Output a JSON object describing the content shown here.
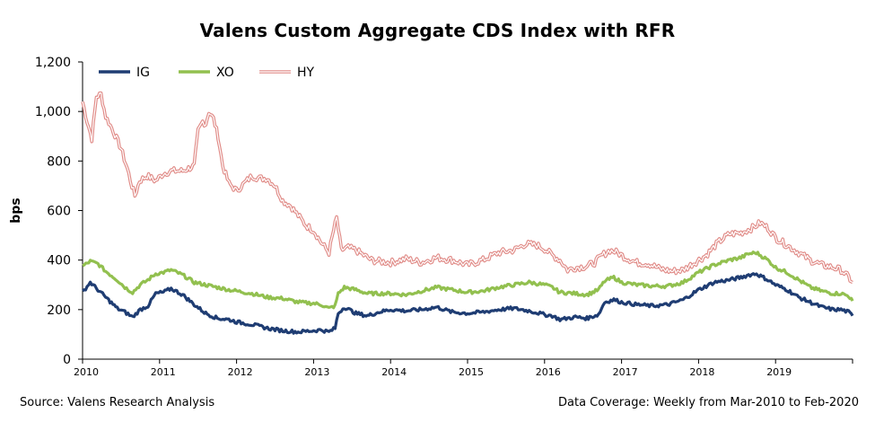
{
  "chart_data": {
    "type": "line",
    "title": "Valens Custom Aggregate CDS Index with RFR",
    "ylabel": "bps",
    "xlabel": "",
    "ylim": [
      0,
      1200
    ],
    "xlim": [
      2010.0,
      2020.0
    ],
    "y_ticks": [
      "0",
      "200",
      "400",
      "600",
      "800",
      "1,000",
      "1,200"
    ],
    "x_ticks": [
      "2010",
      "2011",
      "2012",
      "2013",
      "2014",
      "2015",
      "2016",
      "2017",
      "2018",
      "2019"
    ],
    "legend_position": "top-left",
    "grid": false,
    "series": [
      {
        "name": "IG",
        "color": "#1f3d73",
        "style": "solid",
        "points": [
          [
            2010.0,
            270
          ],
          [
            2010.1,
            310
          ],
          [
            2010.2,
            280
          ],
          [
            2010.3,
            250
          ],
          [
            2010.45,
            205
          ],
          [
            2010.55,
            190
          ],
          [
            2010.65,
            170
          ],
          [
            2010.75,
            200
          ],
          [
            2010.85,
            215
          ],
          [
            2010.95,
            265
          ],
          [
            2011.05,
            270
          ],
          [
            2011.15,
            285
          ],
          [
            2011.3,
            260
          ],
          [
            2011.45,
            220
          ],
          [
            2011.6,
            185
          ],
          [
            2011.75,
            165
          ],
          [
            2011.9,
            160
          ],
          [
            2012.0,
            150
          ],
          [
            2012.2,
            140
          ],
          [
            2012.4,
            125
          ],
          [
            2012.6,
            115
          ],
          [
            2012.8,
            110
          ],
          [
            2013.0,
            115
          ],
          [
            2013.1,
            118
          ],
          [
            2013.2,
            110
          ],
          [
            2013.28,
            125
          ],
          [
            2013.32,
            185
          ],
          [
            2013.4,
            210
          ],
          [
            2013.55,
            185
          ],
          [
            2013.7,
            175
          ],
          [
            2013.85,
            190
          ],
          [
            2014.0,
            200
          ],
          [
            2014.2,
            195
          ],
          [
            2014.4,
            200
          ],
          [
            2014.6,
            210
          ],
          [
            2014.8,
            190
          ],
          [
            2015.0,
            185
          ],
          [
            2015.2,
            190
          ],
          [
            2015.4,
            200
          ],
          [
            2015.6,
            205
          ],
          [
            2015.8,
            195
          ],
          [
            2016.0,
            180
          ],
          [
            2016.1,
            175
          ],
          [
            2016.2,
            160
          ],
          [
            2016.4,
            170
          ],
          [
            2016.55,
            165
          ],
          [
            2016.7,
            180
          ],
          [
            2016.78,
            230
          ],
          [
            2016.9,
            240
          ],
          [
            2017.0,
            230
          ],
          [
            2017.2,
            220
          ],
          [
            2017.4,
            215
          ],
          [
            2017.6,
            220
          ],
          [
            2017.8,
            240
          ],
          [
            2018.0,
            280
          ],
          [
            2018.2,
            310
          ],
          [
            2018.4,
            320
          ],
          [
            2018.55,
            330
          ],
          [
            2018.65,
            340
          ],
          [
            2018.75,
            345
          ],
          [
            2018.9,
            320
          ],
          [
            2019.0,
            300
          ],
          [
            2019.15,
            280
          ],
          [
            2019.3,
            250
          ],
          [
            2019.45,
            230
          ],
          [
            2019.6,
            210
          ],
          [
            2019.75,
            200
          ],
          [
            2019.85,
            200
          ],
          [
            2019.95,
            190
          ],
          [
            2020.0,
            175
          ]
        ]
      },
      {
        "name": "XO",
        "color": "#92c04f",
        "style": "solid",
        "points": [
          [
            2010.0,
            375
          ],
          [
            2010.1,
            395
          ],
          [
            2010.2,
            385
          ],
          [
            2010.3,
            355
          ],
          [
            2010.45,
            320
          ],
          [
            2010.55,
            290
          ],
          [
            2010.65,
            270
          ],
          [
            2010.75,
            300
          ],
          [
            2010.85,
            320
          ],
          [
            2010.95,
            345
          ],
          [
            2011.05,
            350
          ],
          [
            2011.15,
            360
          ],
          [
            2011.3,
            340
          ],
          [
            2011.45,
            310
          ],
          [
            2011.6,
            300
          ],
          [
            2011.75,
            290
          ],
          [
            2011.9,
            280
          ],
          [
            2012.0,
            275
          ],
          [
            2012.2,
            265
          ],
          [
            2012.4,
            250
          ],
          [
            2012.6,
            245
          ],
          [
            2012.8,
            230
          ],
          [
            2013.0,
            225
          ],
          [
            2013.1,
            220
          ],
          [
            2013.2,
            205
          ],
          [
            2013.28,
            215
          ],
          [
            2013.32,
            265
          ],
          [
            2013.4,
            290
          ],
          [
            2013.55,
            280
          ],
          [
            2013.7,
            265
          ],
          [
            2013.85,
            265
          ],
          [
            2014.0,
            265
          ],
          [
            2014.2,
            260
          ],
          [
            2014.4,
            275
          ],
          [
            2014.6,
            290
          ],
          [
            2014.8,
            280
          ],
          [
            2015.0,
            270
          ],
          [
            2015.2,
            275
          ],
          [
            2015.4,
            290
          ],
          [
            2015.6,
            300
          ],
          [
            2015.8,
            310
          ],
          [
            2016.0,
            300
          ],
          [
            2016.1,
            290
          ],
          [
            2016.2,
            270
          ],
          [
            2016.4,
            265
          ],
          [
            2016.55,
            260
          ],
          [
            2016.7,
            280
          ],
          [
            2016.78,
            315
          ],
          [
            2016.9,
            330
          ],
          [
            2017.0,
            310
          ],
          [
            2017.2,
            300
          ],
          [
            2017.4,
            295
          ],
          [
            2017.6,
            295
          ],
          [
            2017.8,
            310
          ],
          [
            2018.0,
            350
          ],
          [
            2018.2,
            380
          ],
          [
            2018.4,
            400
          ],
          [
            2018.55,
            410
          ],
          [
            2018.65,
            425
          ],
          [
            2018.75,
            430
          ],
          [
            2018.9,
            400
          ],
          [
            2019.0,
            370
          ],
          [
            2019.15,
            350
          ],
          [
            2019.3,
            320
          ],
          [
            2019.45,
            290
          ],
          [
            2019.6,
            275
          ],
          [
            2019.75,
            265
          ],
          [
            2019.85,
            265
          ],
          [
            2019.95,
            255
          ],
          [
            2020.0,
            235
          ]
        ]
      },
      {
        "name": "HY",
        "color": "#e08a86",
        "style": "double",
        "points": [
          [
            2010.0,
            1040
          ],
          [
            2010.06,
            960
          ],
          [
            2010.12,
            890
          ],
          [
            2010.18,
            1060
          ],
          [
            2010.24,
            1070
          ],
          [
            2010.3,
            980
          ],
          [
            2010.4,
            920
          ],
          [
            2010.5,
            850
          ],
          [
            2010.58,
            770
          ],
          [
            2010.64,
            700
          ],
          [
            2010.68,
            660
          ],
          [
            2010.74,
            720
          ],
          [
            2010.84,
            740
          ],
          [
            2010.95,
            720
          ],
          [
            2011.05,
            750
          ],
          [
            2011.15,
            760
          ],
          [
            2011.3,
            760
          ],
          [
            2011.45,
            780
          ],
          [
            2011.5,
            920
          ],
          [
            2011.56,
            960
          ],
          [
            2011.6,
            950
          ],
          [
            2011.64,
            1000
          ],
          [
            2011.7,
            970
          ],
          [
            2011.76,
            900
          ],
          [
            2011.82,
            780
          ],
          [
            2011.9,
            710
          ],
          [
            2012.0,
            680
          ],
          [
            2012.1,
            710
          ],
          [
            2012.2,
            740
          ],
          [
            2012.3,
            730
          ],
          [
            2012.4,
            730
          ],
          [
            2012.5,
            700
          ],
          [
            2012.6,
            640
          ],
          [
            2012.7,
            620
          ],
          [
            2012.8,
            580
          ],
          [
            2012.9,
            540
          ],
          [
            2013.0,
            520
          ],
          [
            2013.1,
            470
          ],
          [
            2013.2,
            430
          ],
          [
            2013.26,
            520
          ],
          [
            2013.3,
            570
          ],
          [
            2013.36,
            440
          ],
          [
            2013.45,
            450
          ],
          [
            2013.55,
            440
          ],
          [
            2013.65,
            420
          ],
          [
            2013.75,
            400
          ],
          [
            2013.85,
            395
          ],
          [
            2014.0,
            390
          ],
          [
            2014.2,
            405
          ],
          [
            2014.4,
            390
          ],
          [
            2014.6,
            410
          ],
          [
            2014.8,
            400
          ],
          [
            2015.0,
            380
          ],
          [
            2015.2,
            400
          ],
          [
            2015.4,
            430
          ],
          [
            2015.6,
            440
          ],
          [
            2015.75,
            465
          ],
          [
            2015.9,
            460
          ],
          [
            2016.0,
            445
          ],
          [
            2016.1,
            420
          ],
          [
            2016.2,
            400
          ],
          [
            2016.3,
            360
          ],
          [
            2016.4,
            370
          ],
          [
            2016.55,
            375
          ],
          [
            2016.65,
            390
          ],
          [
            2016.75,
            420
          ],
          [
            2016.85,
            440
          ],
          [
            2016.95,
            430
          ],
          [
            2017.05,
            410
          ],
          [
            2017.2,
            390
          ],
          [
            2017.35,
            385
          ],
          [
            2017.5,
            365
          ],
          [
            2017.65,
            355
          ],
          [
            2017.8,
            360
          ],
          [
            2017.95,
            390
          ],
          [
            2018.1,
            420
          ],
          [
            2018.25,
            470
          ],
          [
            2018.4,
            505
          ],
          [
            2018.55,
            510
          ],
          [
            2018.7,
            530
          ],
          [
            2018.8,
            550
          ],
          [
            2018.9,
            530
          ],
          [
            2019.0,
            490
          ],
          [
            2019.15,
            460
          ],
          [
            2019.3,
            430
          ],
          [
            2019.45,
            400
          ],
          [
            2019.6,
            380
          ],
          [
            2019.75,
            370
          ],
          [
            2019.85,
            360
          ],
          [
            2019.95,
            330
          ],
          [
            2020.0,
            310
          ]
        ]
      }
    ],
    "footer_left": "Source: Valens Research Analysis",
    "footer_right": "Data Coverage: Weekly from Mar-2010 to Feb-2020"
  }
}
